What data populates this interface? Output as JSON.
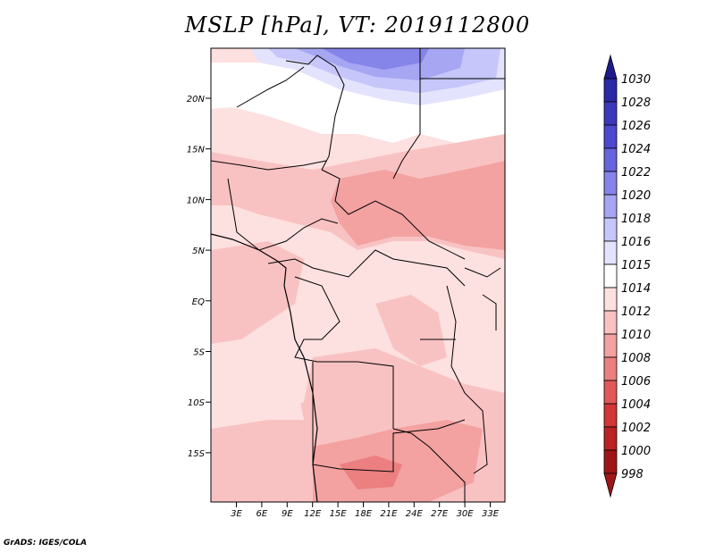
{
  "title": "MSLP [hPa], VT: 2019112800",
  "credit": "GrADS: IGES/COLA",
  "map": {
    "lat_labels": [
      "20N",
      "15N",
      "10N",
      "5N",
      "EQ",
      "5S",
      "10S",
      "15S"
    ],
    "lon_labels": [
      "3E",
      "6E",
      "9E",
      "12E",
      "15E",
      "18E",
      "21E",
      "24E",
      "27E",
      "30E",
      "33E"
    ]
  },
  "colorbar": {
    "levels": [
      "1030",
      "1028",
      "1026",
      "1024",
      "1022",
      "1020",
      "1018",
      "1016",
      "1015",
      "1014",
      "1012",
      "1010",
      "1008",
      "1006",
      "1004",
      "1002",
      "1000",
      "998"
    ],
    "colors": [
      "#1e1a8c",
      "#2a29a6",
      "#3b38bb",
      "#4c49cf",
      "#6665dd",
      "#8584e9",
      "#a7a6f3",
      "#c6c6fa",
      "#e3e3fd",
      "#ffffff",
      "#fde0e0",
      "#f9c2c2",
      "#f3a1a1",
      "#ec7f7f",
      "#e25858",
      "#d33636",
      "#bb2222",
      "#a01616"
    ]
  }
}
